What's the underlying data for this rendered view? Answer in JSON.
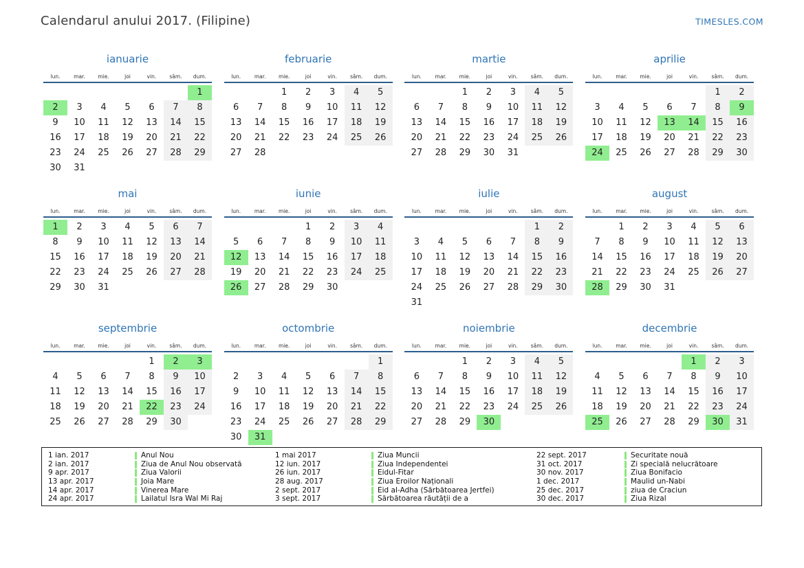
{
  "header": {
    "title": "Calendarul anului 2017. (Filipine)",
    "site": "TIMESLES.COM"
  },
  "colors": {
    "accent_blue": "#2e74b5",
    "header_line_blue": "#2b5d8c",
    "weekend_gray": "#f1f1f1",
    "holiday_green": "#90ee90",
    "legend_bar_green": "#8ce87e"
  },
  "day_headers": [
    "lun.",
    "mar.",
    "mie.",
    "joi",
    "vin.",
    "sâm.",
    "dum."
  ],
  "months": [
    {
      "name": "ianuarie",
      "green": [
        1,
        2
      ],
      "weeks": [
        [
          "",
          "",
          "",
          "",
          "",
          "",
          "1"
        ],
        [
          "2",
          "3",
          "4",
          "5",
          "6",
          "7",
          "8"
        ],
        [
          "9",
          "10",
          "11",
          "12",
          "13",
          "14",
          "15"
        ],
        [
          "16",
          "17",
          "18",
          "19",
          "20",
          "21",
          "22"
        ],
        [
          "23",
          "24",
          "25",
          "26",
          "27",
          "28",
          "29"
        ],
        [
          "30",
          "31",
          "",
          "",
          "",
          "",
          ""
        ]
      ]
    },
    {
      "name": "februarie",
      "green": [],
      "weeks": [
        [
          "",
          "",
          "1",
          "2",
          "3",
          "4",
          "5"
        ],
        [
          "6",
          "7",
          "8",
          "9",
          "10",
          "11",
          "12"
        ],
        [
          "13",
          "14",
          "15",
          "16",
          "17",
          "18",
          "19"
        ],
        [
          "20",
          "21",
          "22",
          "23",
          "24",
          "25",
          "26"
        ],
        [
          "27",
          "28",
          "",
          "",
          "",
          "",
          ""
        ]
      ]
    },
    {
      "name": "martie",
      "green": [],
      "weeks": [
        [
          "",
          "",
          "1",
          "2",
          "3",
          "4",
          "5"
        ],
        [
          "6",
          "7",
          "8",
          "9",
          "10",
          "11",
          "12"
        ],
        [
          "13",
          "14",
          "15",
          "16",
          "17",
          "18",
          "19"
        ],
        [
          "20",
          "21",
          "22",
          "23",
          "24",
          "25",
          "26"
        ],
        [
          "27",
          "28",
          "29",
          "30",
          "31",
          "",
          ""
        ]
      ]
    },
    {
      "name": "aprilie",
      "green": [
        9,
        13,
        14,
        24
      ],
      "weeks": [
        [
          "",
          "",
          "",
          "",
          "",
          "1",
          "2"
        ],
        [
          "3",
          "4",
          "5",
          "6",
          "7",
          "8",
          "9"
        ],
        [
          "10",
          "11",
          "12",
          "13",
          "14",
          "15",
          "16"
        ],
        [
          "17",
          "18",
          "19",
          "20",
          "21",
          "22",
          "23"
        ],
        [
          "24",
          "25",
          "26",
          "27",
          "28",
          "29",
          "30"
        ]
      ]
    },
    {
      "name": "mai",
      "green": [
        1
      ],
      "weeks": [
        [
          "1",
          "2",
          "3",
          "4",
          "5",
          "6",
          "7"
        ],
        [
          "8",
          "9",
          "10",
          "11",
          "12",
          "13",
          "14"
        ],
        [
          "15",
          "16",
          "17",
          "18",
          "19",
          "20",
          "21"
        ],
        [
          "22",
          "23",
          "24",
          "25",
          "26",
          "27",
          "28"
        ],
        [
          "29",
          "30",
          "31",
          "",
          "",
          "",
          ""
        ]
      ]
    },
    {
      "name": "iunie",
      "green": [
        12,
        26
      ],
      "weeks": [
        [
          "",
          "",
          "",
          "1",
          "2",
          "3",
          "4"
        ],
        [
          "5",
          "6",
          "7",
          "8",
          "9",
          "10",
          "11"
        ],
        [
          "12",
          "13",
          "14",
          "15",
          "16",
          "17",
          "18"
        ],
        [
          "19",
          "20",
          "21",
          "22",
          "23",
          "24",
          "25"
        ],
        [
          "26",
          "27",
          "28",
          "29",
          "30",
          "",
          ""
        ]
      ]
    },
    {
      "name": "iulie",
      "green": [],
      "weeks": [
        [
          "",
          "",
          "",
          "",
          "",
          "1",
          "2"
        ],
        [
          "3",
          "4",
          "5",
          "6",
          "7",
          "8",
          "9"
        ],
        [
          "10",
          "11",
          "12",
          "13",
          "14",
          "15",
          "16"
        ],
        [
          "17",
          "18",
          "19",
          "20",
          "21",
          "22",
          "23"
        ],
        [
          "24",
          "25",
          "26",
          "27",
          "28",
          "29",
          "30"
        ],
        [
          "31",
          "",
          "",
          "",
          "",
          "",
          ""
        ]
      ]
    },
    {
      "name": "august",
      "green": [
        28
      ],
      "weeks": [
        [
          "",
          "1",
          "2",
          "3",
          "4",
          "5",
          "6"
        ],
        [
          "7",
          "8",
          "9",
          "10",
          "11",
          "12",
          "13"
        ],
        [
          "14",
          "15",
          "16",
          "17",
          "18",
          "19",
          "20"
        ],
        [
          "21",
          "22",
          "23",
          "24",
          "25",
          "26",
          "27"
        ],
        [
          "28",
          "29",
          "30",
          "31",
          "",
          "",
          ""
        ]
      ]
    },
    {
      "name": "septembrie",
      "green": [
        2,
        3,
        22
      ],
      "weeks": [
        [
          "",
          "",
          "",
          "",
          "1",
          "2",
          "3"
        ],
        [
          "4",
          "5",
          "6",
          "7",
          "8",
          "9",
          "10"
        ],
        [
          "11",
          "12",
          "13",
          "14",
          "15",
          "16",
          "17"
        ],
        [
          "18",
          "19",
          "20",
          "21",
          "22",
          "23",
          "24"
        ],
        [
          "25",
          "26",
          "27",
          "28",
          "29",
          "30",
          ""
        ]
      ]
    },
    {
      "name": "octombrie",
      "green": [
        31
      ],
      "weeks": [
        [
          "",
          "",
          "",
          "",
          "",
          "",
          "1"
        ],
        [
          "2",
          "3",
          "4",
          "5",
          "6",
          "7",
          "8"
        ],
        [
          "9",
          "10",
          "11",
          "12",
          "13",
          "14",
          "15"
        ],
        [
          "16",
          "17",
          "18",
          "19",
          "20",
          "21",
          "22"
        ],
        [
          "23",
          "24",
          "25",
          "26",
          "27",
          "28",
          "29"
        ],
        [
          "30",
          "31",
          "",
          "",
          "",
          "",
          ""
        ]
      ]
    },
    {
      "name": "noiembrie",
      "green": [
        30
      ],
      "weeks": [
        [
          "",
          "",
          "1",
          "2",
          "3",
          "4",
          "5"
        ],
        [
          "6",
          "7",
          "8",
          "9",
          "10",
          "11",
          "12"
        ],
        [
          "13",
          "14",
          "15",
          "16",
          "17",
          "18",
          "19"
        ],
        [
          "20",
          "21",
          "22",
          "23",
          "24",
          "25",
          "26"
        ],
        [
          "27",
          "28",
          "29",
          "30",
          "",
          "",
          ""
        ]
      ]
    },
    {
      "name": "decembrie",
      "green": [
        1,
        25,
        30
      ],
      "weeks": [
        [
          "",
          "",
          "",
          "",
          "1",
          "2",
          "3"
        ],
        [
          "4",
          "5",
          "6",
          "7",
          "8",
          "9",
          "10"
        ],
        [
          "11",
          "12",
          "13",
          "14",
          "15",
          "16",
          "17"
        ],
        [
          "18",
          "19",
          "20",
          "21",
          "22",
          "23",
          "24"
        ],
        [
          "25",
          "26",
          "27",
          "28",
          "29",
          "30",
          "31"
        ]
      ]
    }
  ],
  "legend": {
    "columns": [
      [
        {
          "date": "1 ian. 2017",
          "name": "Anul Nou"
        },
        {
          "date": "2 ian. 2017",
          "name": "Ziua de Anul Nou observată"
        },
        {
          "date": "9 apr. 2017",
          "name": "Ziua Valorii"
        },
        {
          "date": "13 apr. 2017",
          "name": "Joia Mare"
        },
        {
          "date": "14 apr. 2017",
          "name": "Vinerea Mare"
        },
        {
          "date": "24 apr. 2017",
          "name": "Lailatul Isra Wal Mi Raj"
        }
      ],
      [
        {
          "date": "1 mai 2017",
          "name": "Ziua Muncii"
        },
        {
          "date": "12 iun. 2017",
          "name": "Ziua Independentei"
        },
        {
          "date": "26 iun. 2017",
          "name": "Eidul-Fitar"
        },
        {
          "date": "28 aug. 2017",
          "name": "Ziua Eroilor Naționali"
        },
        {
          "date": "2 sept. 2017",
          "name": "Eid al-Adha (Sărbătoarea Jertfei)"
        },
        {
          "date": "3 sept. 2017",
          "name": "Sărbătoarea răutății de a"
        }
      ],
      [
        {
          "date": "22 sept. 2017",
          "name": "Securitate nouă"
        },
        {
          "date": "31 oct. 2017",
          "name": "Zi specială nelucrătoare"
        },
        {
          "date": "30 nov. 2017",
          "name": "Ziua Bonifacio"
        },
        {
          "date": "1 dec. 2017",
          "name": "Maulid un-Nabi"
        },
        {
          "date": "25 dec. 2017",
          "name": "ziua de Craciun"
        },
        {
          "date": "30 dec. 2017",
          "name": "Ziua Rizal"
        }
      ]
    ]
  }
}
